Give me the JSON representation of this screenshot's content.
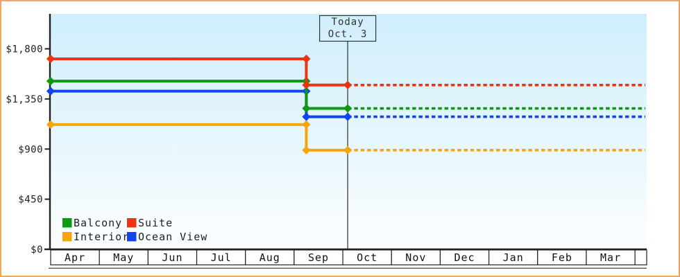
{
  "frame": {
    "border_color": "#eda85c",
    "background_color": "#ffffff"
  },
  "chart_data": {
    "type": "line",
    "subtype": "stepped-price-history",
    "grid": "off",
    "plot_bg_top": "#cfeefb",
    "plot_bg_bottom": "#fcfeff",
    "axis_color": "#222222",
    "today_line_color": "#3c3c3c",
    "y_axis": {
      "tick_values": [
        0,
        450,
        900,
        1350,
        1800
      ],
      "tick_labels": [
        "$0",
        "$450",
        "$900",
        "$1,350",
        "$1,800"
      ],
      "range": [
        0,
        2100
      ]
    },
    "x_axis": {
      "month_labels": [
        "Apr",
        "May",
        "Jun",
        "Jul",
        "Aug",
        "Sep",
        "Oct",
        "Nov",
        "Dec",
        "Jan",
        "Feb",
        "Mar"
      ]
    },
    "annotation": {
      "line1": "Today",
      "line2": "Oct. 3",
      "today_month_position": 6.1
    },
    "price_drop_month_position": 5.25,
    "series": [
      {
        "name": "Interior",
        "color": "#f5a70a",
        "price_before": 1120,
        "price_after": 890,
        "legend_slot": 2
      },
      {
        "name": "Ocean View",
        "color": "#1143ee",
        "price_before": 1420,
        "price_after": 1190,
        "legend_slot": 3
      },
      {
        "name": "Balcony",
        "color": "#0d9a12",
        "price_before": 1510,
        "price_after": 1265,
        "legend_slot": 0
      },
      {
        "name": "Suite",
        "color": "#ee3310",
        "price_before": 1710,
        "price_after": 1475,
        "legend_slot": 1
      }
    ],
    "legend_position": "bottom-left-inside"
  }
}
